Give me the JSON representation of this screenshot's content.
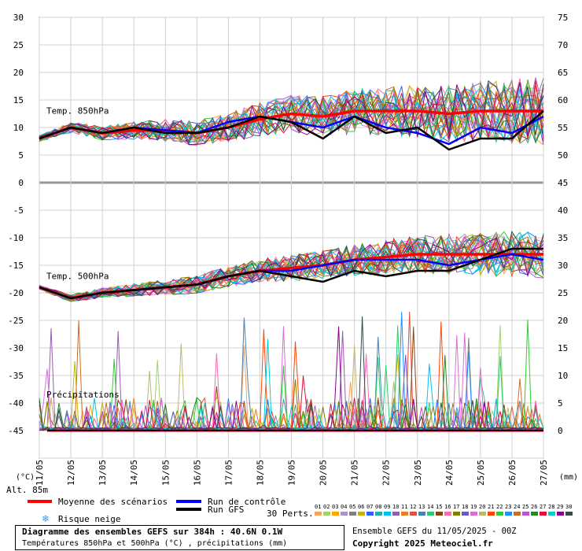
{
  "chart_data": {
    "type": "line",
    "upper_panel_label": "Temp. 850hPa",
    "middle_panel_label": "Temp. 500hPa",
    "precip_label": "Précipitations",
    "left_axis_unit": "(°C)",
    "right_axis_unit": "(mm)",
    "alt_label": "Alt. 85m",
    "left_ticks": [
      "30",
      "25",
      "20",
      "15",
      "10",
      "5",
      "0",
      "-5",
      "-10",
      "-15",
      "-20",
      "-25",
      "-30",
      "-35",
      "-40",
      "-45"
    ],
    "right_ticks_upper": [
      "75",
      "70",
      "65",
      "60",
      "55",
      "50",
      "45"
    ],
    "right_ticks_lower": [
      "40",
      "35",
      "30",
      "25",
      "20",
      "15",
      "10",
      "5",
      "0"
    ],
    "x_labels": [
      "11/05",
      "12/05",
      "13/05",
      "14/05",
      "15/05",
      "16/05",
      "17/05",
      "18/05",
      "19/05",
      "20/05",
      "21/05",
      "22/05",
      "23/05",
      "24/05",
      "25/05",
      "26/05",
      "27/05"
    ],
    "series": [
      {
        "name": "Moyenne des scénarios",
        "color": "#ff0000",
        "t850": [
          8,
          10,
          9,
          9.5,
          9.5,
          9,
          10,
          11.5,
          12.5,
          12,
          13,
          13,
          13,
          12.5,
          13,
          13,
          13
        ],
        "t500": [
          -19,
          -21,
          -20,
          -19.5,
          -19,
          -18.5,
          -17,
          -16,
          -15.5,
          -15,
          -14,
          -13.5,
          -13,
          -13,
          -13,
          -13,
          -13
        ]
      },
      {
        "name": "Run de contrôle",
        "color": "#0000ff",
        "t850": [
          8,
          10,
          9,
          10,
          9.5,
          9,
          11,
          12,
          11,
          10,
          12,
          10,
          9,
          7,
          10,
          9,
          12
        ],
        "t500": [
          -19,
          -21,
          -20,
          -19.5,
          -19,
          -18.5,
          -17,
          -16,
          -16,
          -15,
          -14,
          -14,
          -14,
          -15,
          -14,
          -13,
          -14
        ]
      },
      {
        "name": "Run GFS",
        "color": "#000000",
        "t850": [
          8,
          10,
          9,
          10,
          9,
          9,
          10,
          12,
          11,
          8,
          12,
          9,
          10,
          6,
          8,
          8,
          13
        ],
        "t500": [
          -19,
          -21,
          -20,
          -19.5,
          -19,
          -18.5,
          -17,
          -16,
          -17,
          -18,
          -16,
          -17,
          -16,
          -16,
          -14,
          -12,
          -12
        ]
      }
    ],
    "legend": {
      "mean": "Moyenne des scénarios",
      "control": "Run de contrôle",
      "gfs": "Run GFS",
      "snow": "Risque neige",
      "perts": "30 Perts."
    },
    "pert_labels": [
      "01",
      "02",
      "03",
      "04",
      "05",
      "06",
      "07",
      "08",
      "09",
      "10",
      "11",
      "12",
      "13",
      "14",
      "15",
      "16",
      "17",
      "18",
      "19",
      "20",
      "21",
      "22",
      "23",
      "24",
      "25",
      "26",
      "27",
      "28",
      "29",
      "30"
    ],
    "pert_colors": [
      "#f4a460",
      "#a0d468",
      "#ffa500",
      "#b090d0",
      "#808080",
      "#c8b400",
      "#3060ff",
      "#20b2aa",
      "#00bfff",
      "#9b59b6",
      "#e67e22",
      "#e74c3c",
      "#4682b4",
      "#2ecc71",
      "#8b4513",
      "#ff69b4",
      "#7f7f00",
      "#6a5acd",
      "#da70d6",
      "#bdb76b",
      "#ff4500",
      "#32cd32",
      "#1e90ff",
      "#d2691e",
      "#ba55d3",
      "#228b22",
      "#dc143c",
      "#00ced1",
      "#8b008b",
      "#2f4f4f"
    ],
    "ylim_temp": [
      -45,
      30
    ],
    "title_main": "Diagramme des ensembles GEFS sur 384h : 40.6N 0.1W",
    "title_sub": "Températures 850hPa et 500hPa (°C) , précipitations (mm)",
    "run_info": "Ensemble GEFS du 11/05/2025 - 00Z",
    "copyright": "Copyright 2025 Meteociel.fr"
  }
}
